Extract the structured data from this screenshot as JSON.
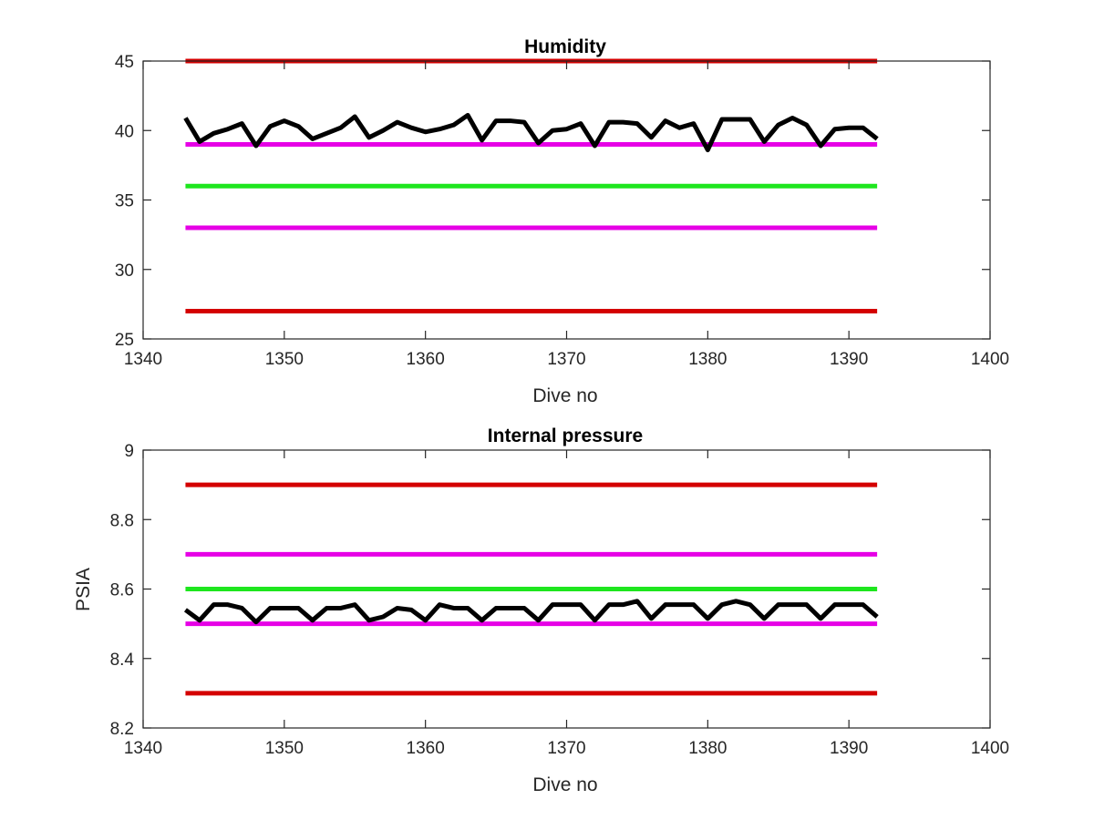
{
  "chart_data": [
    {
      "type": "line",
      "title": "Humidity",
      "xlabel": "Dive no",
      "ylabel": "",
      "xlim": [
        1340,
        1400
      ],
      "ylim": [
        25,
        45
      ],
      "xticks": [
        1340,
        1350,
        1360,
        1370,
        1380,
        1390,
        1400
      ],
      "yticks": [
        25,
        30,
        35,
        40,
        45
      ],
      "grid": false,
      "series": [
        {
          "role": "threshold-upper-limit",
          "color": "#d40000",
          "x": [
            1343,
            1392
          ],
          "y": [
            45,
            45
          ]
        },
        {
          "role": "threshold-upper-warning",
          "color": "#e600e6",
          "x": [
            1343,
            1392
          ],
          "y": [
            39,
            39
          ]
        },
        {
          "role": "nominal",
          "color": "#1ee61e",
          "x": [
            1343,
            1392
          ],
          "y": [
            36,
            36
          ]
        },
        {
          "role": "threshold-lower-warning",
          "color": "#e600e6",
          "x": [
            1343,
            1392
          ],
          "y": [
            33,
            33
          ]
        },
        {
          "role": "threshold-lower-limit",
          "color": "#d40000",
          "x": [
            1343,
            1392
          ],
          "y": [
            27,
            27
          ]
        },
        {
          "role": "measured",
          "color": "#000000",
          "x": [
            1343,
            1344,
            1345,
            1346,
            1347,
            1348,
            1349,
            1350,
            1351,
            1352,
            1353,
            1354,
            1355,
            1356,
            1357,
            1358,
            1359,
            1360,
            1361,
            1362,
            1363,
            1364,
            1365,
            1366,
            1367,
            1368,
            1369,
            1370,
            1371,
            1372,
            1373,
            1374,
            1375,
            1376,
            1377,
            1378,
            1379,
            1380,
            1381,
            1382,
            1383,
            1384,
            1385,
            1386,
            1387,
            1388,
            1389,
            1390,
            1391,
            1392
          ],
          "y": [
            40.9,
            39.2,
            39.8,
            40.1,
            40.5,
            38.9,
            40.3,
            40.7,
            40.3,
            39.4,
            39.8,
            40.2,
            41.0,
            39.5,
            40.0,
            40.6,
            40.2,
            39.9,
            40.1,
            40.4,
            41.1,
            39.3,
            40.7,
            40.7,
            40.6,
            39.1,
            40.0,
            40.1,
            40.5,
            38.9,
            40.6,
            40.6,
            40.5,
            39.5,
            40.7,
            40.2,
            40.5,
            38.6,
            40.8,
            40.8,
            40.8,
            39.2,
            40.4,
            40.9,
            40.4,
            38.9,
            40.1,
            40.2,
            40.2,
            39.4
          ]
        }
      ]
    },
    {
      "type": "line",
      "title": "Internal pressure",
      "xlabel": "Dive no",
      "ylabel": "PSIA",
      "xlim": [
        1340,
        1400
      ],
      "ylim": [
        8.2,
        9
      ],
      "xticks": [
        1340,
        1350,
        1360,
        1370,
        1380,
        1390,
        1400
      ],
      "yticks": [
        8.2,
        8.4,
        8.6,
        8.8,
        9
      ],
      "grid": false,
      "series": [
        {
          "role": "threshold-upper-limit",
          "color": "#d40000",
          "x": [
            1343,
            1392
          ],
          "y": [
            8.9,
            8.9
          ]
        },
        {
          "role": "threshold-upper-warning",
          "color": "#e600e6",
          "x": [
            1343,
            1392
          ],
          "y": [
            8.7,
            8.7
          ]
        },
        {
          "role": "nominal",
          "color": "#1ee61e",
          "x": [
            1343,
            1392
          ],
          "y": [
            8.6,
            8.6
          ]
        },
        {
          "role": "threshold-lower-warning",
          "color": "#e600e6",
          "x": [
            1343,
            1392
          ],
          "y": [
            8.5,
            8.5
          ]
        },
        {
          "role": "threshold-lower-limit",
          "color": "#d40000",
          "x": [
            1343,
            1392
          ],
          "y": [
            8.3,
            8.3
          ]
        },
        {
          "role": "measured",
          "color": "#000000",
          "x": [
            1343,
            1344,
            1345,
            1346,
            1347,
            1348,
            1349,
            1350,
            1351,
            1352,
            1353,
            1354,
            1355,
            1356,
            1357,
            1358,
            1359,
            1360,
            1361,
            1362,
            1363,
            1364,
            1365,
            1366,
            1367,
            1368,
            1369,
            1370,
            1371,
            1372,
            1373,
            1374,
            1375,
            1376,
            1377,
            1378,
            1379,
            1380,
            1381,
            1382,
            1383,
            1384,
            1385,
            1386,
            1387,
            1388,
            1389,
            1390,
            1391,
            1392
          ],
          "y": [
            8.54,
            8.51,
            8.555,
            8.555,
            8.545,
            8.505,
            8.545,
            8.545,
            8.545,
            8.51,
            8.545,
            8.545,
            8.555,
            8.51,
            8.52,
            8.545,
            8.54,
            8.51,
            8.555,
            8.545,
            8.545,
            8.51,
            8.545,
            8.545,
            8.545,
            8.51,
            8.555,
            8.555,
            8.555,
            8.51,
            8.555,
            8.555,
            8.565,
            8.515,
            8.555,
            8.555,
            8.555,
            8.515,
            8.555,
            8.565,
            8.555,
            8.515,
            8.555,
            8.555,
            8.555,
            8.515,
            8.555,
            8.555,
            8.555,
            8.52
          ]
        }
      ]
    }
  ]
}
